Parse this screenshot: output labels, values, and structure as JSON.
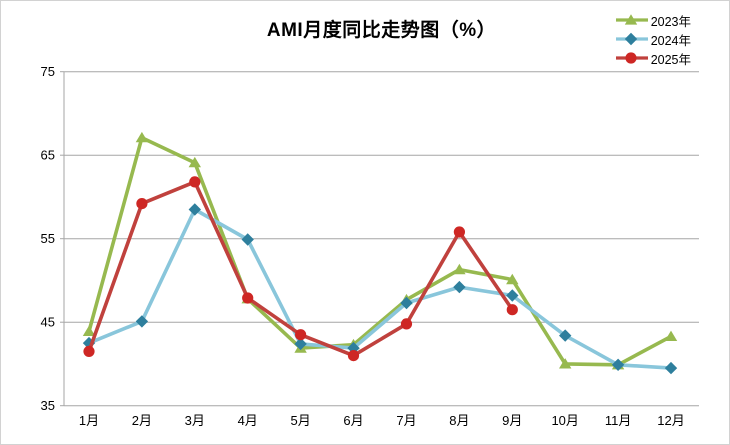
{
  "chart_data": {
    "type": "line",
    "title": "AMI月度同比走势图（%）",
    "categories": [
      "1月",
      "2月",
      "3月",
      "4月",
      "5月",
      "6月",
      "7月",
      "8月",
      "9月",
      "10月",
      "11月",
      "12月"
    ],
    "series": [
      {
        "name": "2023年",
        "marker": "triangle",
        "line_color": "#97b94f",
        "marker_color": "#97b94f",
        "values": [
          43.9,
          67.1,
          64.1,
          47.8,
          41.9,
          42.3,
          47.7,
          51.3,
          50.1,
          40.0,
          39.9,
          43.3
        ]
      },
      {
        "name": "2024年",
        "marker": "diamond",
        "line_color": "#89c6db",
        "marker_color": "#2e7f9d",
        "values": [
          42.5,
          45.1,
          58.5,
          54.9,
          42.4,
          41.9,
          47.3,
          49.2,
          48.2,
          43.4,
          39.9,
          39.5
        ]
      },
      {
        "name": "2025年",
        "marker": "circle",
        "line_color": "#c0413d",
        "marker_color": "#ce2724",
        "values": [
          41.5,
          59.2,
          61.8,
          47.9,
          43.5,
          41.0,
          44.8,
          55.8,
          46.5,
          null,
          null,
          null
        ]
      }
    ],
    "ylim": [
      35,
      75
    ],
    "yticks": [
      35,
      45,
      55,
      65,
      75
    ],
    "xlabel": "",
    "ylabel": "",
    "grid": true,
    "legend_position": "top-right",
    "axis_color": "#a6a6a6"
  }
}
